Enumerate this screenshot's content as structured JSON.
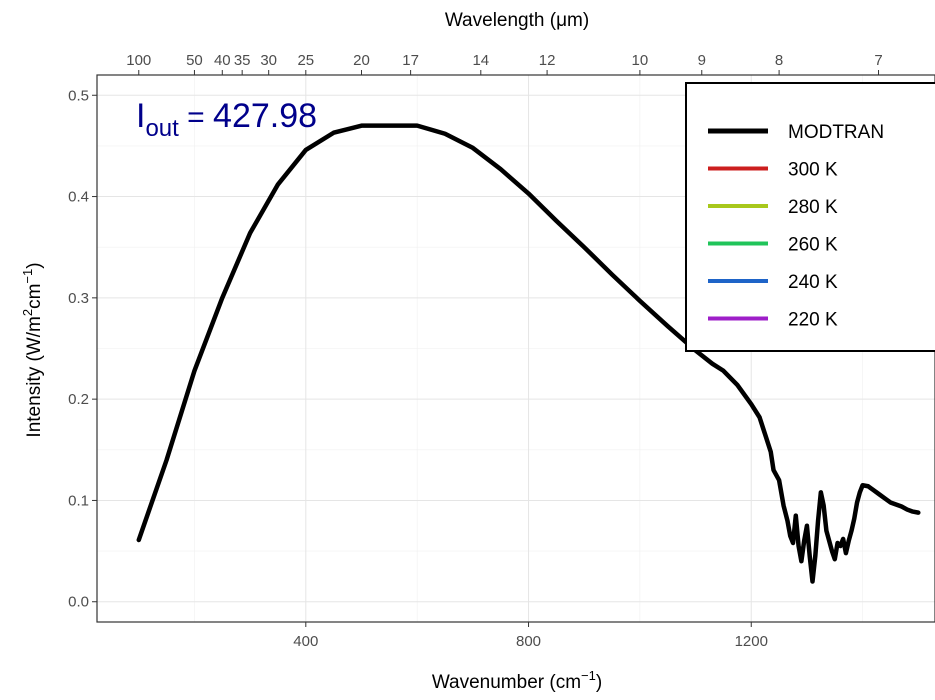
{
  "chart_data": {
    "type": "line",
    "xlabel": {
      "main": "Wavenumber (cm",
      "sup": "−1",
      "close": ")"
    },
    "ylabel": {
      "p1": "Intensity (W/m",
      "sup1": "2",
      "p2": "cm",
      "sup2": "−1",
      "close": ")"
    },
    "x2label": "Wavelength (μm)",
    "xlim": [
      25,
      1530
    ],
    "ylim": [
      -0.02,
      0.52
    ],
    "x_ticks": [
      400,
      800,
      1200
    ],
    "y_ticks": [
      0.0,
      0.1,
      0.2,
      0.3,
      0.4,
      0.5
    ],
    "y_tick_labels": [
      "0.0",
      "0.1",
      "0.2",
      "0.3",
      "0.4",
      "0.5"
    ],
    "x2_ticks": [
      {
        "label": "100",
        "um": 100
      },
      {
        "label": "50",
        "um": 50
      },
      {
        "label": "40",
        "um": 40
      },
      {
        "label": "35",
        "um": 35
      },
      {
        "label": "30",
        "um": 30
      },
      {
        "label": "25",
        "um": 25
      },
      {
        "label": "20",
        "um": 20
      },
      {
        "label": "17",
        "um": 17
      },
      {
        "label": "14",
        "um": 14
      },
      {
        "label": "12",
        "um": 12
      },
      {
        "label": "10",
        "um": 10
      },
      {
        "label": "9",
        "um": 9
      },
      {
        "label": "8",
        "um": 8
      },
      {
        "label": "7",
        "um": 7
      }
    ],
    "x_range": [
      100,
      1500
    ],
    "grid": true,
    "legend_position": "top-right",
    "annotation": {
      "base": "I",
      "sub": "out",
      "eq": " = ",
      "value": "427.98"
    },
    "series": [
      {
        "name": "MODTRAN",
        "color": "#000000",
        "kind": "modtran",
        "points": [
          [
            100,
            0.061
          ],
          [
            150,
            0.14
          ],
          [
            200,
            0.228
          ],
          [
            250,
            0.3
          ],
          [
            300,
            0.364
          ],
          [
            350,
            0.412
          ],
          [
            400,
            0.446
          ],
          [
            450,
            0.463
          ],
          [
            500,
            0.47
          ],
          [
            550,
            0.47
          ],
          [
            600,
            0.47
          ],
          [
            650,
            0.462
          ],
          [
            700,
            0.448
          ],
          [
            750,
            0.427
          ],
          [
            800,
            0.403
          ],
          [
            850,
            0.376
          ],
          [
            900,
            0.35
          ],
          [
            950,
            0.323
          ],
          [
            1000,
            0.297
          ],
          [
            1050,
            0.272
          ],
          [
            1100,
            0.248
          ],
          [
            1130,
            0.235
          ],
          [
            1150,
            0.228
          ],
          [
            1175,
            0.214
          ],
          [
            1200,
            0.195
          ],
          [
            1215,
            0.182
          ],
          [
            1225,
            0.165
          ],
          [
            1235,
            0.148
          ],
          [
            1240,
            0.13
          ],
          [
            1250,
            0.12
          ],
          [
            1258,
            0.095
          ],
          [
            1265,
            0.08
          ],
          [
            1270,
            0.065
          ],
          [
            1275,
            0.058
          ],
          [
            1280,
            0.085
          ],
          [
            1285,
            0.055
          ],
          [
            1290,
            0.04
          ],
          [
            1295,
            0.06
          ],
          [
            1300,
            0.075
          ],
          [
            1305,
            0.045
          ],
          [
            1310,
            0.02
          ],
          [
            1315,
            0.045
          ],
          [
            1320,
            0.08
          ],
          [
            1325,
            0.108
          ],
          [
            1330,
            0.095
          ],
          [
            1335,
            0.07
          ],
          [
            1340,
            0.06
          ],
          [
            1345,
            0.05
          ],
          [
            1350,
            0.042
          ],
          [
            1355,
            0.058
          ],
          [
            1360,
            0.055
          ],
          [
            1365,
            0.062
          ],
          [
            1370,
            0.048
          ],
          [
            1375,
            0.06
          ],
          [
            1380,
            0.07
          ],
          [
            1385,
            0.082
          ],
          [
            1390,
            0.098
          ],
          [
            1395,
            0.108
          ],
          [
            1400,
            0.115
          ],
          [
            1410,
            0.114
          ],
          [
            1420,
            0.11
          ],
          [
            1430,
            0.106
          ],
          [
            1440,
            0.102
          ],
          [
            1450,
            0.098
          ],
          [
            1460,
            0.096
          ],
          [
            1470,
            0.094
          ],
          [
            1480,
            0.091
          ],
          [
            1490,
            0.089
          ],
          [
            1500,
            0.088
          ]
        ]
      },
      {
        "name": "300 K",
        "color": "#CC1E1E",
        "kind": "planck",
        "T": 300
      },
      {
        "name": "280 K",
        "color": "#A8C81C",
        "kind": "planck",
        "T": 280
      },
      {
        "name": "260 K",
        "color": "#20C45A",
        "kind": "planck",
        "T": 260
      },
      {
        "name": "240 K",
        "color": "#1E64C8",
        "kind": "planck",
        "T": 240
      },
      {
        "name": "220 K",
        "color": "#9E1EC8",
        "kind": "planck",
        "T": 220
      }
    ]
  }
}
